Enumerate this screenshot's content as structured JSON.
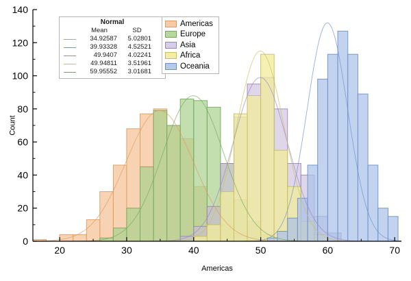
{
  "chart_data": {
    "type": "bar",
    "subtype": "histogram-with-normal-fit",
    "title": "",
    "xlabel": "Americas",
    "ylabel": "Count",
    "xlim": [
      16,
      71
    ],
    "ylim": [
      0,
      140
    ],
    "x_ticks": [
      20,
      30,
      40,
      50,
      60,
      70
    ],
    "x_minor_ticks": [
      25,
      35,
      45,
      55,
      65
    ],
    "y_ticks": [
      0,
      20,
      40,
      60,
      80,
      100,
      120,
      140
    ],
    "y_minor_ticks": [
      10,
      30,
      50,
      70,
      90,
      110,
      130
    ],
    "grid": false,
    "legend_position": "top-left-inside",
    "series": [
      {
        "name": "Americas",
        "fill": "#F5C49A",
        "stroke": "#DE9A5D",
        "fill_opacity": 0.75,
        "bin_start": 16,
        "bin_width": 2,
        "counts": [
          1,
          0,
          4,
          4,
          13,
          30,
          46,
          68,
          77,
          80,
          70,
          62,
          33,
          21,
          10,
          5,
          2
        ],
        "normal": {
          "mean": 34.92587,
          "sd": 5.02801,
          "peak": 79
        }
      },
      {
        "name": "Europe",
        "fill": "#A9D18E",
        "stroke": "#74A85E",
        "fill_opacity": 0.7,
        "bin_start": 26,
        "bin_width": 2,
        "counts": [
          2,
          8,
          20,
          45,
          79,
          70,
          86,
          85,
          81,
          47,
          25,
          12,
          4
        ],
        "normal": {
          "mean": 39.93328,
          "sd": 4.52521,
          "peak": 88
        }
      },
      {
        "name": "Asia",
        "fill": "#C9BCDB",
        "stroke": "#9A86BD",
        "fill_opacity": 0.6,
        "bin_start": 38,
        "bin_width": 2,
        "counts": [
          3,
          9,
          21,
          47,
          75,
          95,
          99,
          80,
          47,
          40,
          15,
          5
        ],
        "normal": {
          "mean": 49.9407,
          "sd": 4.02241,
          "peak": 99
        }
      },
      {
        "name": "Africa",
        "fill": "#F2EC9B",
        "stroke": "#C9BF5E",
        "fill_opacity": 0.75,
        "bin_start": 40,
        "bin_width": 2,
        "counts": [
          3,
          10,
          30,
          77,
          88,
          113,
          55,
          33,
          12,
          4
        ],
        "normal": {
          "mean": 49.94811,
          "sd": 3.51961,
          "peak": 115
        }
      },
      {
        "name": "Oceania",
        "fill": "#A8C0E8",
        "stroke": "#6E8FC9",
        "fill_opacity": 0.7,
        "bin_start": 51,
        "bin_width": 1.5,
        "counts": [
          2,
          6,
          14,
          26,
          46,
          98,
          113,
          127,
          113,
          89,
          46,
          20,
          15
        ],
        "normal": {
          "mean": 59.95552,
          "sd": 3.01681,
          "peak": 132
        }
      }
    ],
    "stats_box": {
      "title": "Normal",
      "columns": [
        "Mean",
        "SD"
      ],
      "rows": [
        {
          "mean": "34.92587",
          "sd": "5.02801"
        },
        {
          "mean": "39.93328",
          "sd": "4.52521"
        },
        {
          "mean": "49.9407",
          "sd": "4.02241"
        },
        {
          "mean": "49.94811",
          "sd": "3.51961"
        },
        {
          "mean": "59.95552",
          "sd": "3.01681"
        }
      ]
    },
    "legend": {
      "items": [
        "Americas",
        "Europe",
        "Asia",
        "Africa",
        "Oceania"
      ]
    }
  }
}
